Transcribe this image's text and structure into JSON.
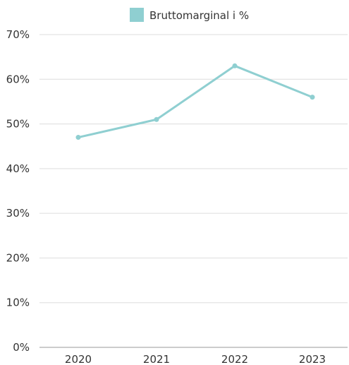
{
  "chart_data": {
    "type": "line",
    "categories": [
      "2020",
      "2021",
      "2022",
      "2023"
    ],
    "series": [
      {
        "name": "Bruttomarginal i %",
        "values": [
          47,
          51,
          63,
          56
        ],
        "color": "#8fcfd1"
      }
    ],
    "ylim": [
      0,
      70
    ],
    "yticks": [
      0,
      10,
      20,
      30,
      40,
      50,
      60,
      70
    ],
    "ytick_labels": [
      "0%",
      "10%",
      "20%",
      "30%",
      "40%",
      "50%",
      "60%",
      "70%"
    ],
    "grid": true,
    "legend": "top-center",
    "grid_color": "#dddddd",
    "axis_color": "#999999"
  }
}
